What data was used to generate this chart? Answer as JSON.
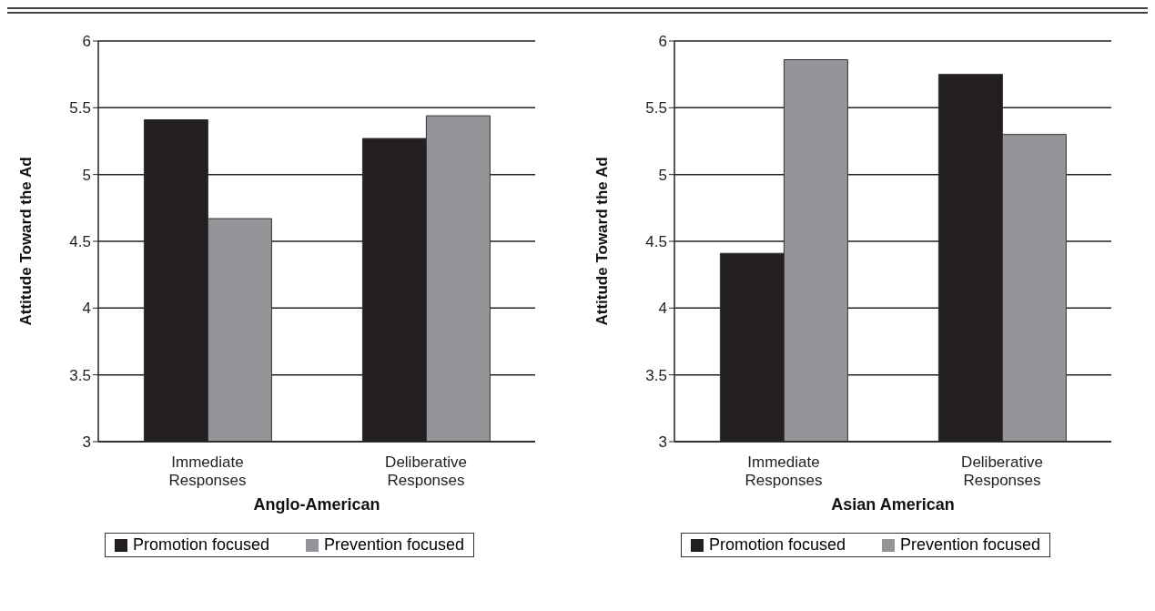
{
  "chart_data": [
    {
      "type": "bar",
      "categories": [
        "Immediate Responses",
        "Deliberative Responses"
      ],
      "series": [
        {
          "name": "Promotion focused",
          "color": "#231f20",
          "values": [
            5.41,
            5.27
          ]
        },
        {
          "name": "Prevention focused",
          "color": "#939598",
          "values": [
            4.67,
            5.44
          ]
        }
      ],
      "ylim": [
        3,
        6
      ],
      "yticks": [
        3,
        3.5,
        4,
        4.5,
        5,
        5.5,
        6
      ],
      "ylabel": "Attitude Toward the Ad",
      "xlabel": "Anglo-American",
      "grid": "y",
      "legend": "bottom"
    },
    {
      "type": "bar",
      "categories": [
        "Immediate Responses",
        "Deliberative Responses"
      ],
      "series": [
        {
          "name": "Promotion focused",
          "color": "#231f20",
          "values": [
            4.41,
            5.75
          ]
        },
        {
          "name": "Prevention focused",
          "color": "#939598",
          "values": [
            5.86,
            5.3
          ]
        }
      ],
      "ylim": [
        3,
        6
      ],
      "yticks": [
        3,
        3.5,
        4,
        4.5,
        5,
        5.5,
        6
      ],
      "ylabel": "Attitude Toward the Ad",
      "xlabel": "Asian American",
      "grid": "y",
      "legend": "bottom"
    }
  ]
}
